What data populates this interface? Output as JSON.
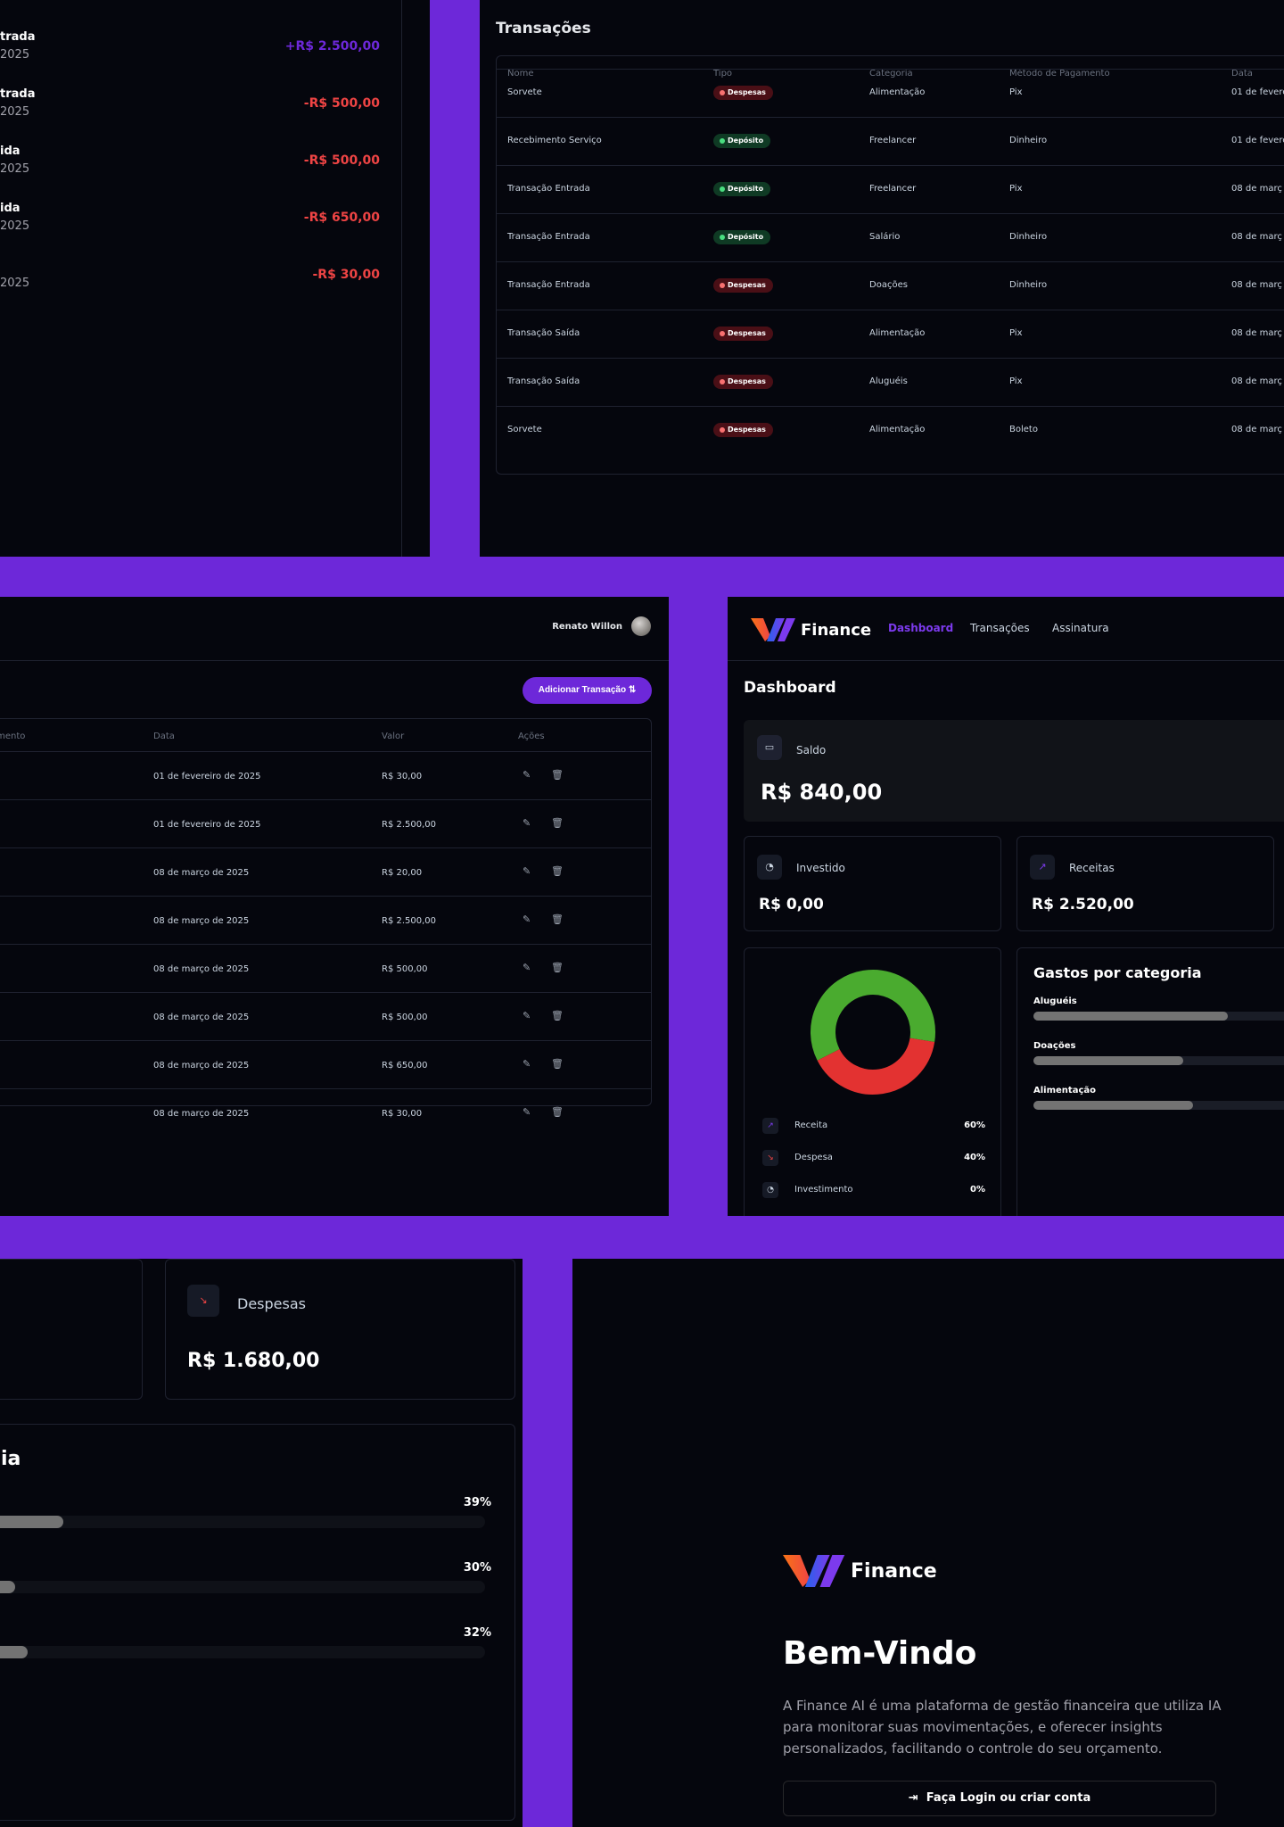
{
  "colors": {
    "accent": "#6d28d9",
    "income": "#6d28d9",
    "expense": "#ef4444",
    "deposit": "#22c55e",
    "donut_green": "#4aab2f",
    "donut_red": "#e33231",
    "bar": "#737373"
  },
  "recent": {
    "items": [
      {
        "name": "trada",
        "date": "2025",
        "value": "+R$ 2.500,00",
        "type": "income"
      },
      {
        "name": "trada",
        "date": "2025",
        "value": "-R$ 500,00",
        "type": "expense"
      },
      {
        "name": "ida",
        "date": "2025",
        "value": "-R$ 500,00",
        "type": "expense"
      },
      {
        "name": "ida",
        "date": "2025",
        "value": "-R$ 650,00",
        "type": "expense"
      },
      {
        "name": "",
        "date": "2025",
        "value": "-R$ 30,00",
        "type": "expense"
      }
    ]
  },
  "transactions_panel": {
    "title": "Transações",
    "headers": [
      "Nome",
      "Tipo",
      "Categoria",
      "Método de Pagamento",
      "Data"
    ],
    "rows": [
      {
        "name": "Sorvete",
        "type": "Despesas",
        "kind": "exp",
        "category": "Alimentação",
        "method": "Pix",
        "date": "01 de fevere"
      },
      {
        "name": "Recebimento Serviço",
        "type": "Depósito",
        "kind": "dep",
        "category": "Freelancer",
        "method": "Dinheiro",
        "date": "01 de fevere"
      },
      {
        "name": "Transação Entrada",
        "type": "Depósito",
        "kind": "dep",
        "category": "Freelancer",
        "method": "Pix",
        "date": "08 de març"
      },
      {
        "name": "Transação Entrada",
        "type": "Depósito",
        "kind": "dep",
        "category": "Salário",
        "method": "Dinheiro",
        "date": "08 de març"
      },
      {
        "name": "Transação Entrada",
        "type": "Despesas",
        "kind": "exp",
        "category": "Doações",
        "method": "Dinheiro",
        "date": "08 de març"
      },
      {
        "name": "Transação Saída",
        "type": "Despesas",
        "kind": "exp",
        "category": "Alimentação",
        "method": "Pix",
        "date": "08 de març"
      },
      {
        "name": "Transação Saída",
        "type": "Despesas",
        "kind": "exp",
        "category": "Aluguéis",
        "method": "Pix",
        "date": "08 de març"
      },
      {
        "name": "Sorvete",
        "type": "Despesas",
        "kind": "exp",
        "category": "Alimentação",
        "method": "Boleto",
        "date": "08 de març"
      }
    ]
  },
  "transactions_full": {
    "user": "Renato Willon",
    "add_button": "Adicionar Transação",
    "headers": [
      "amento",
      "Data",
      "Valor",
      "Ações"
    ],
    "rows": [
      {
        "date": "01 de fevereiro de 2025",
        "value": "R$ 30,00"
      },
      {
        "date": "01 de fevereiro de 2025",
        "value": "R$ 2.500,00"
      },
      {
        "date": "08 de março de 2025",
        "value": "R$ 20,00"
      },
      {
        "date": "08 de março de 2025",
        "value": "R$ 2.500,00"
      },
      {
        "date": "08 de março de 2025",
        "value": "R$ 500,00"
      },
      {
        "date": "08 de março de 2025",
        "value": "R$ 500,00"
      },
      {
        "date": "08 de março de 2025",
        "value": "R$ 650,00"
      },
      {
        "date": "08 de março de 2025",
        "value": "R$ 30,00"
      }
    ]
  },
  "dashboard": {
    "brand": "Finance",
    "nav": [
      "Dashboard",
      "Transações",
      "Assinatura"
    ],
    "title": "Dashboard",
    "saldo_label": "Saldo",
    "saldo_value": "R$ 840,00",
    "invest_label": "Investido",
    "invest_value": "R$ 0,00",
    "receitas_label": "Receitas",
    "receitas_value": "R$ 2.520,00",
    "legend": [
      {
        "name": "Receita",
        "pct": "60%",
        "value": 60,
        "icon": "trend-up-icon"
      },
      {
        "name": "Despesa",
        "pct": "40%",
        "value": 40,
        "icon": "trend-down-icon"
      },
      {
        "name": "Investimento",
        "pct": "0%",
        "value": 0,
        "icon": "piggy-icon"
      }
    ],
    "categories_title": "Gastos por categoria",
    "categories": [
      {
        "name": "Aluguéis",
        "fraction": 0.39
      },
      {
        "name": "Doações",
        "fraction": 0.3
      },
      {
        "name": "Alimentação",
        "fraction": 0.32
      }
    ]
  },
  "zoomed": {
    "despesas_label": "Despesas",
    "despesas_value": "R$ 1.680,00",
    "categories_title_fragment": "ia",
    "pcts": [
      "39%",
      "30%",
      "32%"
    ],
    "fractions": [
      0.39,
      0.3,
      0.32
    ]
  },
  "login": {
    "brand": "Finance",
    "title": "Bem-Vindo",
    "description": "A Finance AI é uma plataforma de gestão financeira que utiliza IA para monitorar suas movimentações, e oferecer insights personalizados, facilitando o controle do seu orçamento.",
    "button": "Faça Login ou criar conta"
  }
}
